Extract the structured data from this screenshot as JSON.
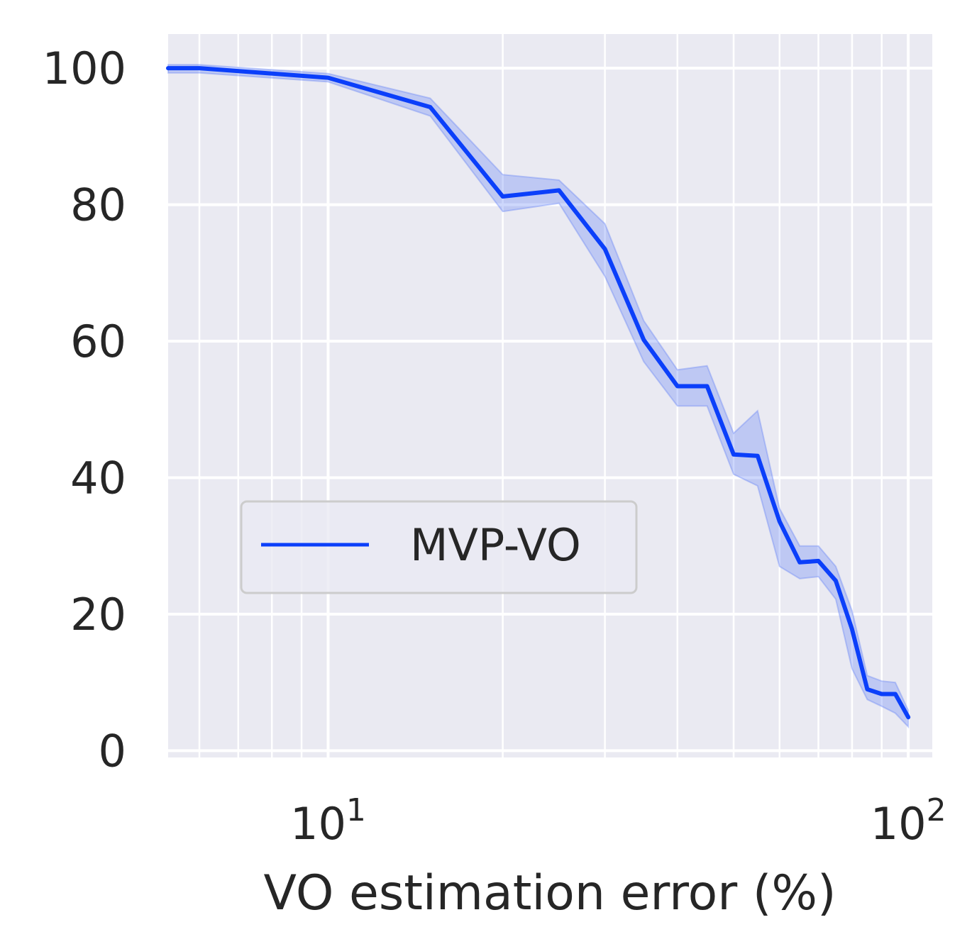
{
  "chart_data": {
    "type": "line",
    "title": "",
    "xlabel": "VO  estimation error (%)",
    "ylabel": "",
    "x_scale": "log",
    "xlim": [
      5.3,
      110
    ],
    "ylim": [
      -1,
      105
    ],
    "x_ticks": [
      {
        "value": 10,
        "base": "10",
        "exp": "1"
      },
      {
        "value": 100,
        "base": "10",
        "exp": "2"
      }
    ],
    "y_ticks": [
      {
        "value": 0,
        "label": "0"
      },
      {
        "value": 20,
        "label": "20"
      },
      {
        "value": 40,
        "label": "40"
      },
      {
        "value": 60,
        "label": "60"
      },
      {
        "value": 80,
        "label": "80"
      },
      {
        "value": 100,
        "label": "100"
      }
    ],
    "grid": true,
    "legend_position": "lower-left",
    "series": [
      {
        "name": "MVP-VO",
        "color": "#0b3ffa",
        "band_color": "#5b7cf5",
        "x": [
          5.3,
          6,
          10,
          15,
          20,
          25,
          30,
          35,
          40,
          45,
          50,
          55,
          60,
          65,
          70,
          75,
          80,
          85,
          90,
          95,
          100
        ],
        "y": [
          100,
          100,
          98.6,
          94.3,
          81.2,
          82.1,
          73.5,
          60.2,
          53.4,
          53.4,
          43.4,
          43.2,
          33.6,
          27.6,
          27.8,
          24.9,
          17.8,
          9.0,
          8.3,
          8.3,
          4.9
        ],
        "y_lower": [
          99.3,
          99.3,
          98.0,
          93.0,
          79.0,
          80.2,
          69.5,
          57.0,
          50.5,
          50.5,
          40.5,
          38.8,
          27.0,
          25.2,
          25.5,
          22.2,
          12.0,
          7.5,
          6.5,
          5.5,
          3.5
        ],
        "y_upper": [
          100.5,
          100.5,
          99.2,
          95.6,
          84.4,
          83.6,
          77.2,
          63.0,
          55.8,
          56.4,
          46.5,
          49.8,
          35.5,
          30.0,
          30.0,
          27.0,
          20.5,
          11.0,
          10.2,
          10.0,
          5.9
        ]
      }
    ]
  }
}
